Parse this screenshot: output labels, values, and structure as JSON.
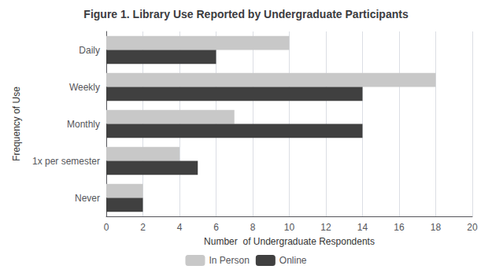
{
  "chart_data": {
    "type": "bar",
    "orientation": "horizontal",
    "title": "Figure 1. Library Use Reported by Undergraduate Participants",
    "categories": [
      "Daily",
      "Weekly",
      "Monthly",
      "1x per semester",
      "Never"
    ],
    "series": [
      {
        "name": "In Person",
        "color": "#c8c8c8",
        "values": [
          10,
          18,
          7,
          4,
          2
        ]
      },
      {
        "name": "Online",
        "color": "#404040",
        "values": [
          6,
          14,
          14,
          5,
          2
        ]
      }
    ],
    "xlabel": "Number  of Undergraduate Respondents",
    "ylabel": "Frequency of Use",
    "xlim": [
      0,
      20
    ],
    "xticks": [
      0,
      2,
      4,
      6,
      8,
      10,
      12,
      14,
      16,
      18,
      20
    ],
    "grid": true,
    "legend": "bottom"
  }
}
